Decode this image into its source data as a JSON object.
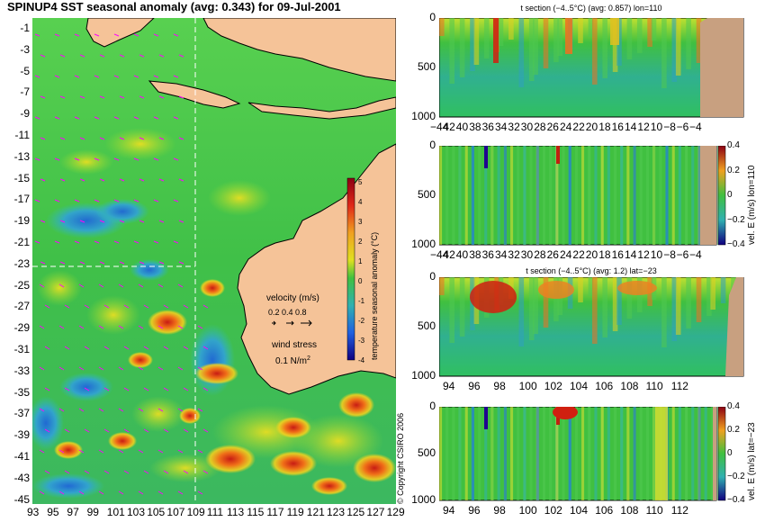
{
  "main_map": {
    "title": "SPINUP4 SST seasonal anomaly (avg: 0.343) for 09-Jul-2001",
    "lat_ticks": [
      "-1",
      "-3",
      "-5",
      "-7",
      "-9",
      "-11",
      "-13",
      "-15",
      "-17",
      "-19",
      "-21",
      "-23",
      "-25",
      "-27",
      "-29",
      "-31",
      "-33",
      "-35",
      "-37",
      "-39",
      "-41",
      "-43",
      "-45"
    ],
    "lon_ticks": [
      "93",
      "95",
      "97",
      "99",
      "101",
      "103",
      "105",
      "107",
      "109",
      "111",
      "113",
      "115",
      "117",
      "119",
      "121",
      "123",
      "125",
      "127",
      "129"
    ],
    "colorbar_label": "temperature seasonal anomaly (°C)",
    "colorbar_ticks": [
      "5",
      "4",
      "3",
      "2",
      "1",
      "0",
      "-1",
      "-2",
      "-3",
      "-4"
    ],
    "velocity_label": "velocity (m/s)",
    "velocity_scale": "0.2 0.4 0.8",
    "wind_label": "wind stress",
    "wind_value": "0.1 N/m",
    "wind_exp": "2",
    "copyright": "© Copyright CSIRO 2006",
    "colors": {
      "land": "#f5c398",
      "sea_mid": "#3cc83c",
      "warm": "#d43c1c",
      "cool": "#2c80e0",
      "arrow": "#ff00ff",
      "dash": "#ffffff"
    }
  },
  "panels": [
    {
      "title": "t section (−4..5°C) (avg: 0.857) lon=110",
      "y_ticks": [
        "0",
        "500",
        "1000"
      ],
      "x_ticks": [
        "−44",
        "42",
        "40",
        "38",
        "36",
        "34",
        "32",
        "30",
        "28",
        "26",
        "24",
        "22",
        "20",
        "18",
        "16",
        "14",
        "12",
        "10",
        "−8",
        "−6",
        "−4"
      ],
      "colorbar": null
    },
    {
      "title": "",
      "y_ticks": [
        "0",
        "500",
        "1000"
      ],
      "x_ticks": [
        "−44",
        "42",
        "40",
        "38",
        "36",
        "34",
        "32",
        "30",
        "28",
        "26",
        "24",
        "22",
        "20",
        "18",
        "16",
        "14",
        "12",
        "10",
        "−8",
        "−6",
        "−4"
      ],
      "colorbar": {
        "label": "vel. E (m/s) lon=110",
        "ticks": [
          "0.4",
          "0.2",
          "0",
          "−0.2",
          "−0.4"
        ]
      }
    },
    {
      "title": "t section (−4..5°C) (avg: 1.2) lat=−23",
      "y_ticks": [
        "0",
        "500",
        "1000"
      ],
      "x_ticks": [
        "94",
        "96",
        "98",
        "100",
        "102",
        "104",
        "106",
        "108",
        "110",
        "112"
      ],
      "colorbar": null
    },
    {
      "title": "",
      "y_ticks": [
        "0",
        "500",
        "1000"
      ],
      "x_ticks": [
        "94",
        "96",
        "98",
        "100",
        "102",
        "104",
        "106",
        "108",
        "110",
        "112"
      ],
      "colorbar": {
        "label": "vel. E (m/s) lat=−23",
        "ticks": [
          "0.4",
          "0.2",
          "0",
          "−0.2",
          "−0.4"
        ]
      }
    }
  ]
}
